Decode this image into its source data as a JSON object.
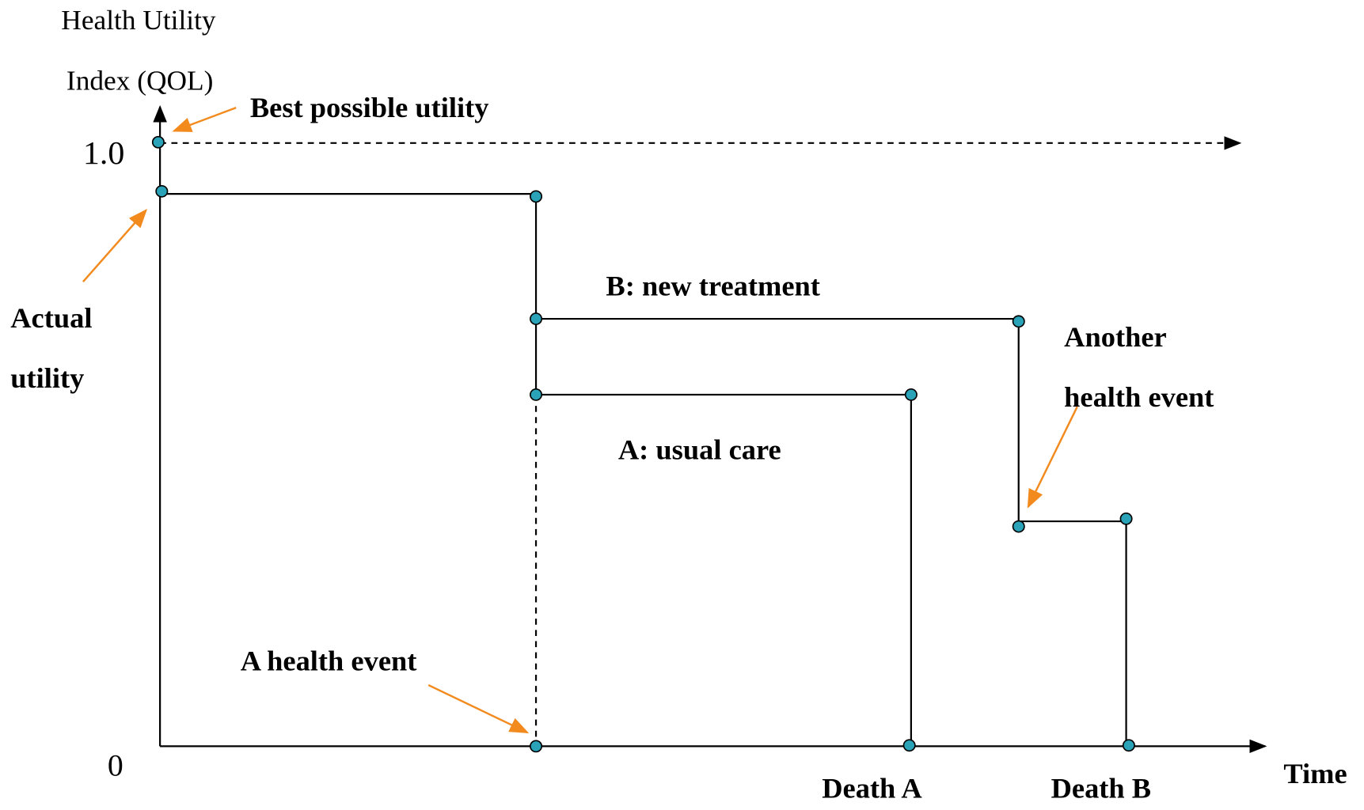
{
  "axis": {
    "y_label": [
      "Health Utility",
      "Index (QOL)"
    ],
    "y_ticks": [
      "1.0",
      "0"
    ],
    "x_label": "Time"
  },
  "annotations": {
    "best": "Best possible utility",
    "actual": [
      "Actual",
      "utility"
    ],
    "event_a": "A health event",
    "event_b": [
      "Another",
      "health event"
    ]
  },
  "curves": {
    "b": "B: new treatment",
    "a": "A: usual care"
  },
  "deaths": [
    "Death A",
    "Death B"
  ]
}
